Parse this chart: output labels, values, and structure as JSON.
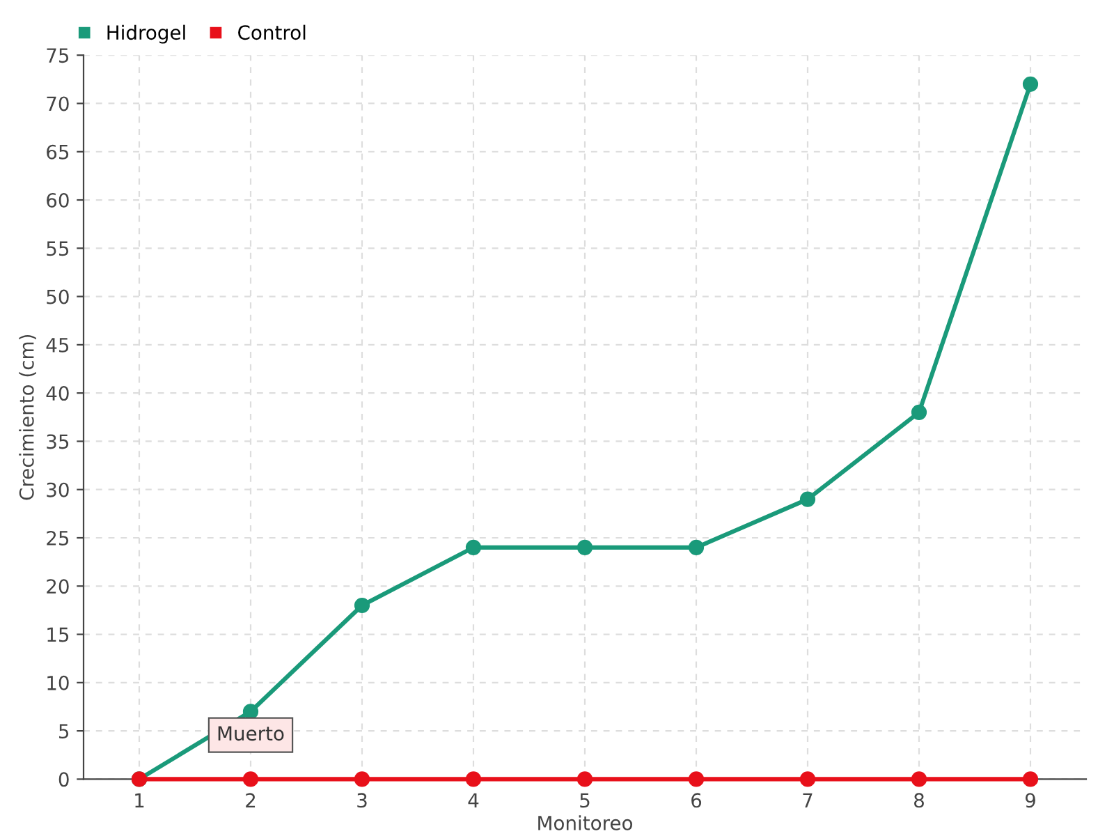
{
  "chart_data": {
    "type": "line",
    "xlabel": "Monitoreo",
    "ylabel": "Crecimiento (cm)",
    "categories": [
      "1",
      "2",
      "3",
      "4",
      "5",
      "6",
      "7",
      "8",
      "9"
    ],
    "series": [
      {
        "name": "Hidrogel",
        "color": "#1a9a7a",
        "values": [
          0,
          7,
          18,
          24,
          24,
          24,
          29,
          38,
          72
        ]
      },
      {
        "name": "Control",
        "color": "#e8101a",
        "values": [
          0,
          0,
          0,
          0,
          0,
          0,
          0,
          0,
          0
        ]
      }
    ],
    "ylim": [
      0,
      75
    ],
    "yticks": [
      0,
      5,
      10,
      15,
      20,
      25,
      30,
      35,
      40,
      45,
      50,
      55,
      60,
      65,
      70,
      75
    ],
    "grid": true,
    "legend": "top left",
    "marker": "circle",
    "annotations": [
      {
        "text": "Muerto",
        "x": "2",
        "y": 0
      }
    ]
  }
}
